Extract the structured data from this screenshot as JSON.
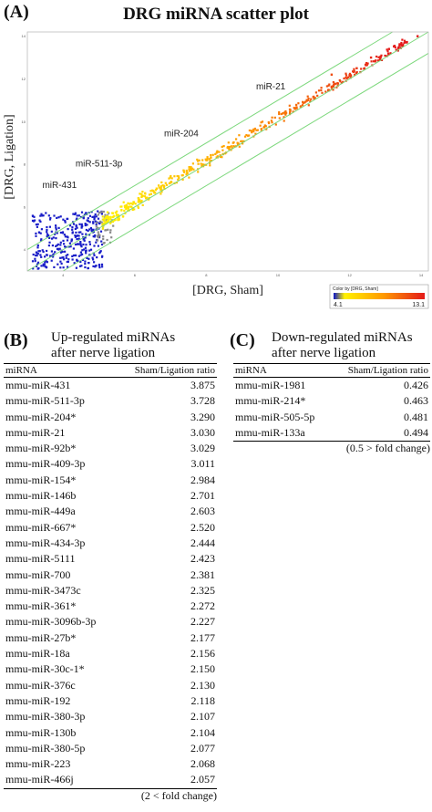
{
  "panels": {
    "a": "(A)",
    "b": "(B)",
    "c": "(C)"
  },
  "chart_data": {
    "type": "scatter",
    "title": "DRG miRNA scatter plot",
    "xlabel": "[DRG, Sham]",
    "ylabel": "[DRG, Ligation]",
    "xlim": [
      3,
      14.2
    ],
    "ylim": [
      3,
      14.2
    ],
    "x_ticks": [
      "4",
      "6",
      "8",
      "10",
      "12",
      "14"
    ],
    "y_ticks": [
      "4",
      "6",
      "8",
      "10",
      "12",
      "14"
    ],
    "grid": false,
    "color_scale": {
      "label": "Color by [DRG, Sham]",
      "min": 4.1,
      "max": 13.1,
      "min_label": "4.1",
      "max_label": "13.1",
      "colors": [
        "#0a14c8",
        "#fff200",
        "#ff9900",
        "#e41a1a"
      ]
    },
    "guide_lines": [
      {
        "name": "identity",
        "offset": 0
      },
      {
        "name": "upper",
        "offset": 1
      },
      {
        "name": "lower",
        "offset": -1
      }
    ],
    "annotations": [
      {
        "text": "miR-21",
        "x": 9.8,
        "y": 11.5
      },
      {
        "text": "miR-204",
        "x": 7.3,
        "y": 9.3
      },
      {
        "text": "miR-511-3p",
        "x": 5.0,
        "y": 7.9
      },
      {
        "text": "miR-431",
        "x": 3.9,
        "y": 6.9
      }
    ]
  },
  "table_b": {
    "title_line1": "Up-regulated miRNAs",
    "title_line2": "after nerve ligation",
    "col1": "miRNA",
    "col2": "Sham/Ligation ratio",
    "rows": [
      {
        "name": "mmu-miR-431",
        "ratio": "3.875"
      },
      {
        "name": "mmu-miR-511-3p",
        "ratio": "3.728"
      },
      {
        "name": "mmu-miR-204*",
        "ratio": "3.290"
      },
      {
        "name": "mmu-miR-21",
        "ratio": "3.030"
      },
      {
        "name": "mmu-miR-92b*",
        "ratio": "3.029"
      },
      {
        "name": "mmu-miR-409-3p",
        "ratio": "3.011"
      },
      {
        "name": "mmu-miR-154*",
        "ratio": "2.984"
      },
      {
        "name": "mmu-miR-146b",
        "ratio": "2.701"
      },
      {
        "name": "mmu-miR-449a",
        "ratio": "2.603"
      },
      {
        "name": "mmu-miR-667*",
        "ratio": "2.520"
      },
      {
        "name": "mmu-miR-434-3p",
        "ratio": "2.444"
      },
      {
        "name": "mmu-miR-5111",
        "ratio": "2.423"
      },
      {
        "name": "mmu-miR-700",
        "ratio": "2.381"
      },
      {
        "name": "mmu-miR-3473c",
        "ratio": "2.325"
      },
      {
        "name": "mmu-miR-361*",
        "ratio": "2.272"
      },
      {
        "name": "mmu-miR-3096b-3p",
        "ratio": "2.227"
      },
      {
        "name": "mmu-miR-27b*",
        "ratio": "2.177"
      },
      {
        "name": "mmu-miR-18a",
        "ratio": "2.156"
      },
      {
        "name": "mmu-miR-30c-1*",
        "ratio": "2.150"
      },
      {
        "name": "mmu-miR-376c",
        "ratio": "2.130"
      },
      {
        "name": "mmu-miR-192",
        "ratio": "2.118"
      },
      {
        "name": "mmu-miR-380-3p",
        "ratio": "2.107"
      },
      {
        "name": "mmu-miR-130b",
        "ratio": "2.104"
      },
      {
        "name": "mmu-miR-380-5p",
        "ratio": "2.077"
      },
      {
        "name": "mmu-miR-223",
        "ratio": "2.068"
      },
      {
        "name": "mmu-miR-466j",
        "ratio": "2.057"
      }
    ],
    "footnote": "(2 < fold change)"
  },
  "table_c": {
    "title_line1": "Down-regulated miRNAs",
    "title_line2": "after nerve ligation",
    "col1": "miRNA",
    "col2": "Sham/Ligation ratio",
    "rows": [
      {
        "name": "mmu-miR-1981",
        "ratio": "0.426"
      },
      {
        "name": "mmu-miR-214*",
        "ratio": "0.463"
      },
      {
        "name": "mmu-miR-505-5p",
        "ratio": "0.481"
      },
      {
        "name": "mmu-miR-133a",
        "ratio": "0.494"
      }
    ],
    "footnote": "(0.5 > fold change)"
  }
}
